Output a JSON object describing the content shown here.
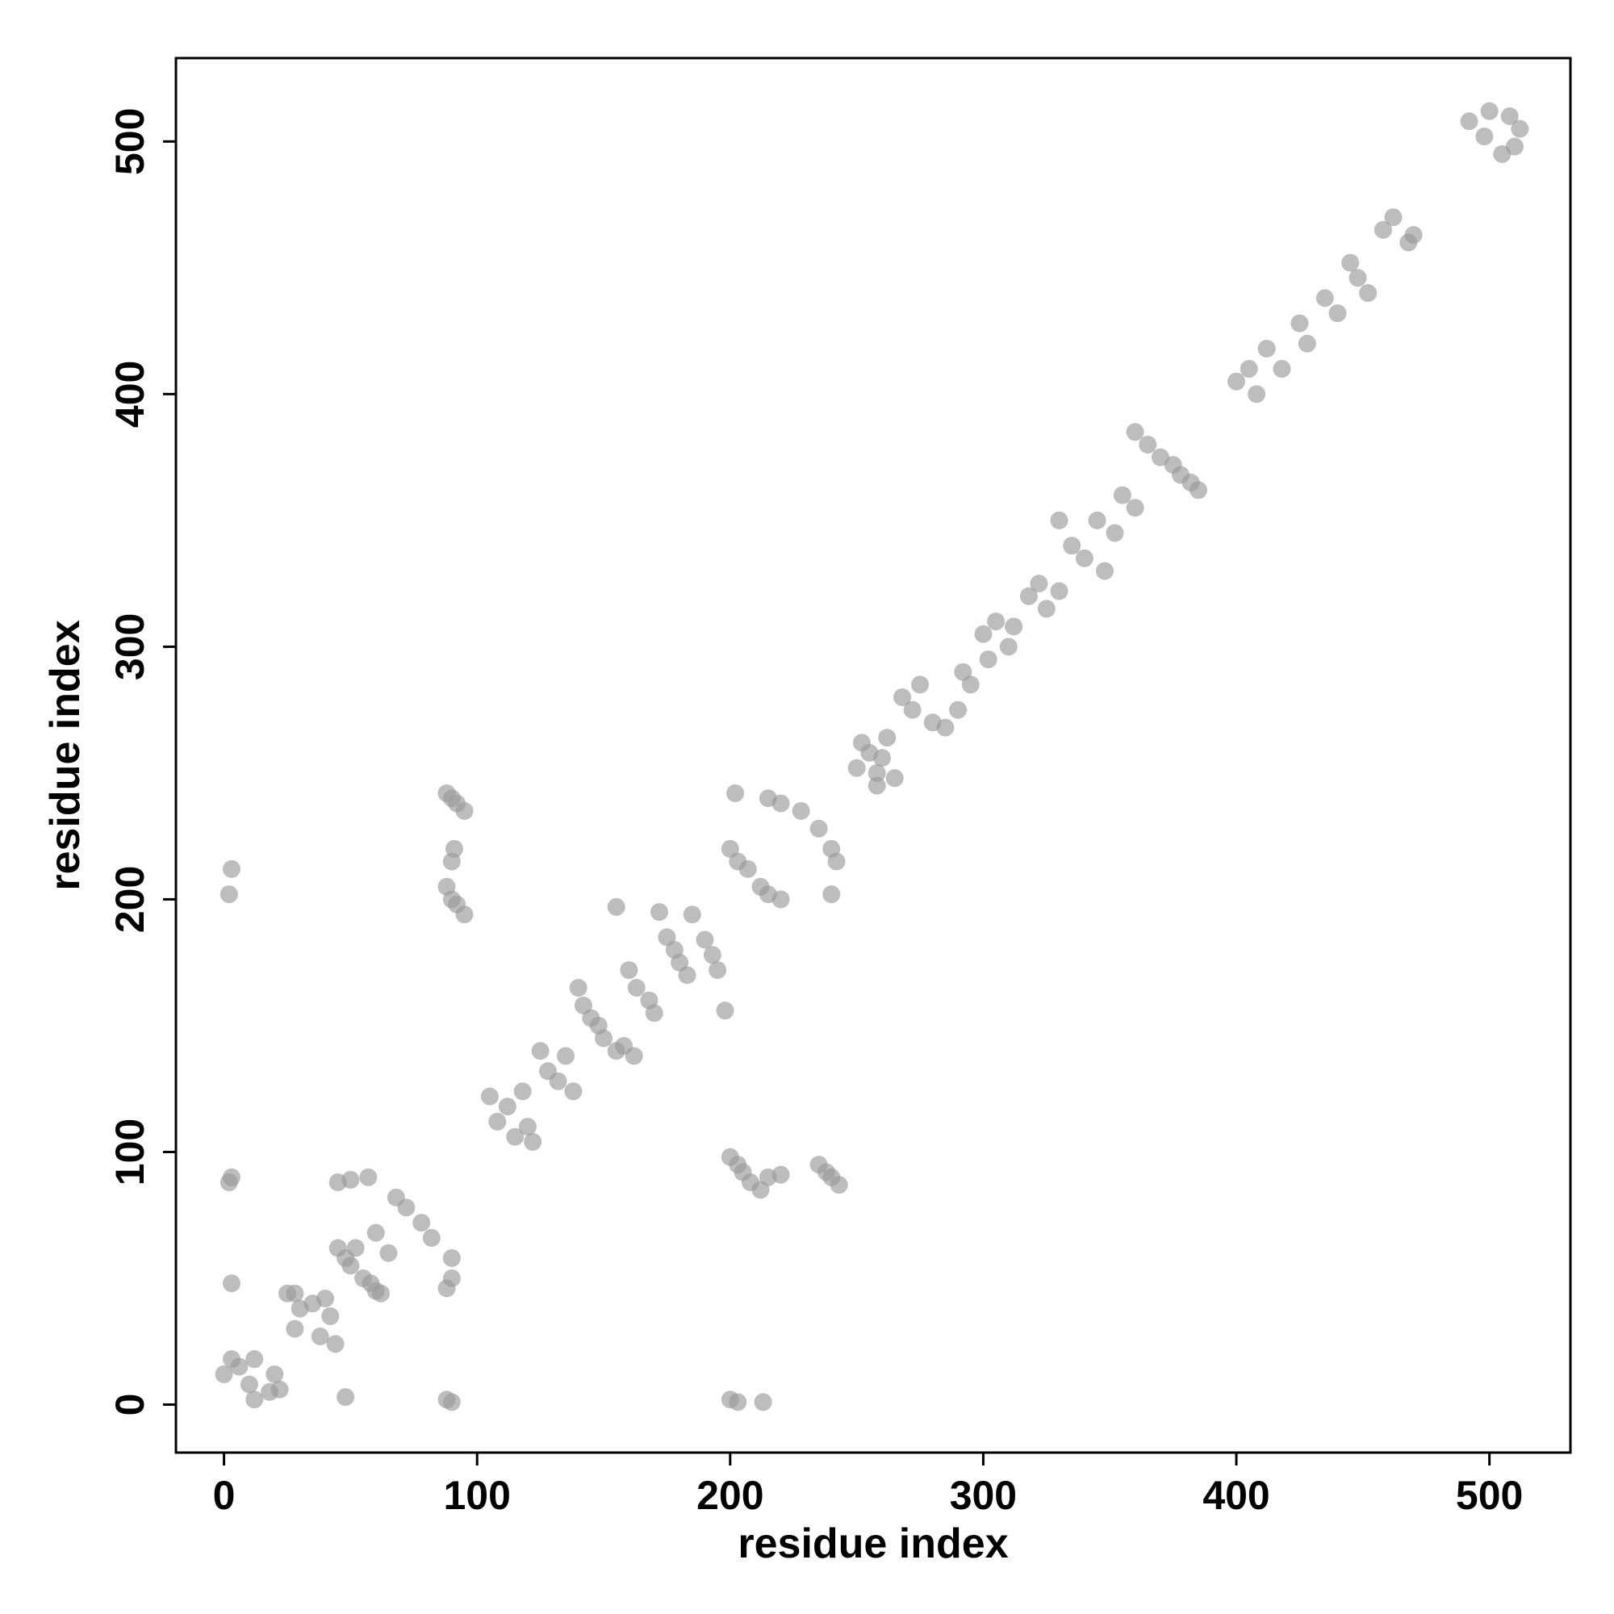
{
  "chart_data": {
    "type": "scatter",
    "xlabel": "residue index",
    "ylabel": "residue index",
    "color": "#9a9a9a",
    "xlim": [
      -19,
      532
    ],
    "ylim": [
      -19,
      533
    ],
    "xticks": [
      0,
      100,
      200,
      300,
      400,
      500
    ],
    "yticks": [
      0,
      100,
      200,
      300,
      400,
      500
    ],
    "x": [
      0,
      3,
      6,
      10,
      12,
      12,
      18,
      20,
      22,
      2,
      3,
      2,
      3,
      3,
      25,
      30,
      28,
      35,
      38,
      42,
      44,
      40,
      28,
      45,
      48,
      50,
      52,
      55,
      58,
      60,
      62,
      45,
      50,
      57,
      60,
      65,
      68,
      72,
      78,
      82,
      88,
      90,
      90,
      48,
      88,
      90,
      88,
      90,
      92,
      95,
      88,
      90,
      92,
      95,
      90,
      91,
      105,
      108,
      112,
      115,
      120,
      122,
      118,
      125,
      128,
      132,
      135,
      138,
      140,
      142,
      145,
      148,
      150,
      155,
      158,
      162,
      155,
      160,
      163,
      168,
      170,
      172,
      175,
      178,
      180,
      183,
      185,
      190,
      193,
      195,
      198,
      200,
      203,
      205,
      208,
      212,
      215,
      220,
      235,
      238,
      240,
      243,
      200,
      203,
      213,
      200,
      203,
      207,
      212,
      215,
      220,
      202,
      215,
      220,
      228,
      235,
      240,
      242,
      240,
      250,
      252,
      255,
      258,
      260,
      262,
      258,
      265,
      268,
      272,
      275,
      280,
      285,
      290,
      292,
      295,
      300,
      302,
      305,
      310,
      312,
      318,
      322,
      325,
      330,
      330,
      335,
      340,
      345,
      348,
      352,
      355,
      360,
      360,
      365,
      370,
      375,
      378,
      382,
      385,
      400,
      405,
      408,
      412,
      418,
      425,
      428,
      435,
      440,
      445,
      448,
      452,
      458,
      462,
      468,
      470,
      492,
      498,
      500,
      505,
      508,
      512,
      510
    ],
    "values": [
      12,
      18,
      15,
      8,
      2,
      18,
      5,
      12,
      6,
      88,
      90,
      202,
      212,
      48,
      44,
      38,
      30,
      40,
      27,
      35,
      24,
      42,
      44,
      62,
      58,
      55,
      62,
      50,
      48,
      45,
      44,
      88,
      89,
      90,
      68,
      60,
      82,
      78,
      72,
      66,
      46,
      50,
      58,
      3,
      2,
      1,
      205,
      200,
      198,
      194,
      242,
      240,
      238,
      235,
      215,
      220,
      122,
      112,
      118,
      106,
      110,
      104,
      124,
      140,
      132,
      128,
      138,
      124,
      165,
      158,
      153,
      150,
      145,
      140,
      142,
      138,
      197,
      172,
      165,
      160,
      155,
      195,
      185,
      180,
      175,
      170,
      194,
      184,
      178,
      172,
      156,
      98,
      95,
      92,
      88,
      85,
      90,
      91,
      95,
      92,
      90,
      87,
      2,
      1,
      1,
      220,
      215,
      212,
      205,
      202,
      200,
      242,
      240,
      238,
      235,
      228,
      220,
      215,
      202,
      252,
      262,
      258,
      250,
      256,
      264,
      245,
      248,
      280,
      275,
      285,
      270,
      268,
      275,
      290,
      285,
      305,
      295,
      310,
      300,
      308,
      320,
      325,
      315,
      322,
      350,
      340,
      335,
      350,
      330,
      345,
      360,
      355,
      385,
      380,
      375,
      372,
      368,
      365,
      362,
      405,
      410,
      400,
      418,
      410,
      428,
      420,
      438,
      432,
      452,
      446,
      440,
      465,
      470,
      460,
      463,
      508,
      502,
      512,
      495,
      510,
      505,
      498
    ]
  }
}
